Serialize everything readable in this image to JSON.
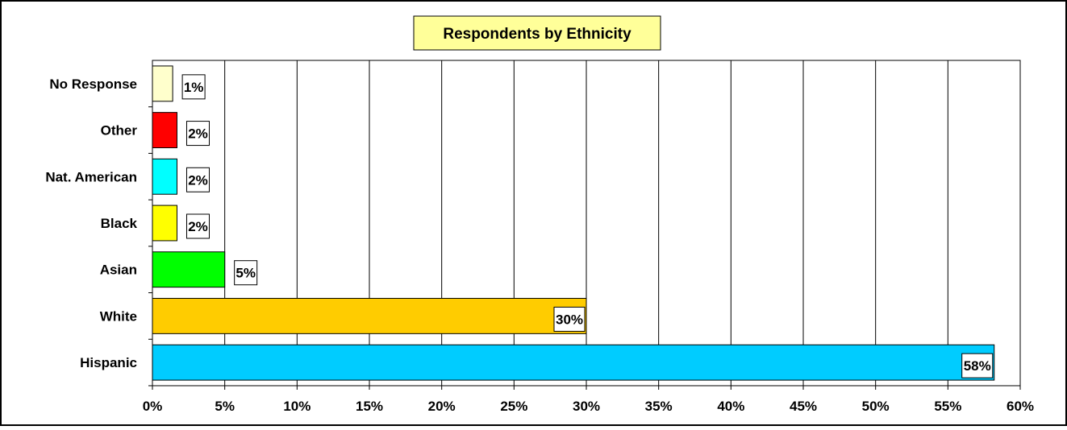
{
  "chart_data": {
    "type": "bar",
    "orientation": "horizontal",
    "title": "Respondents by Ethnicity",
    "categories": [
      "No Response",
      "Other",
      "Nat. American",
      "Black",
      "Asian",
      "White",
      "Hispanic"
    ],
    "values": [
      1.4,
      1.7,
      1.7,
      1.7,
      5.0,
      30.0,
      58.2
    ],
    "data_labels": [
      "1%",
      "2%",
      "2%",
      "2%",
      "5%",
      "30%",
      "58%"
    ],
    "colors": [
      "#FFFFCC",
      "#FF0000",
      "#00FFFF",
      "#FFFF00",
      "#00FF00",
      "#FFCC00",
      "#00CCFF"
    ],
    "xlim": [
      0,
      60
    ],
    "x_ticks": [
      0,
      5,
      10,
      15,
      20,
      25,
      30,
      35,
      40,
      45,
      50,
      55,
      60
    ],
    "x_tick_labels": [
      "0%",
      "5%",
      "10%",
      "15%",
      "20%",
      "25%",
      "30%",
      "35%",
      "40%",
      "45%",
      "50%",
      "55%",
      "60%"
    ],
    "xlabel": "",
    "ylabel": "",
    "grid": "vertical",
    "legend": "none",
    "title_background": "#FFFF99"
  }
}
